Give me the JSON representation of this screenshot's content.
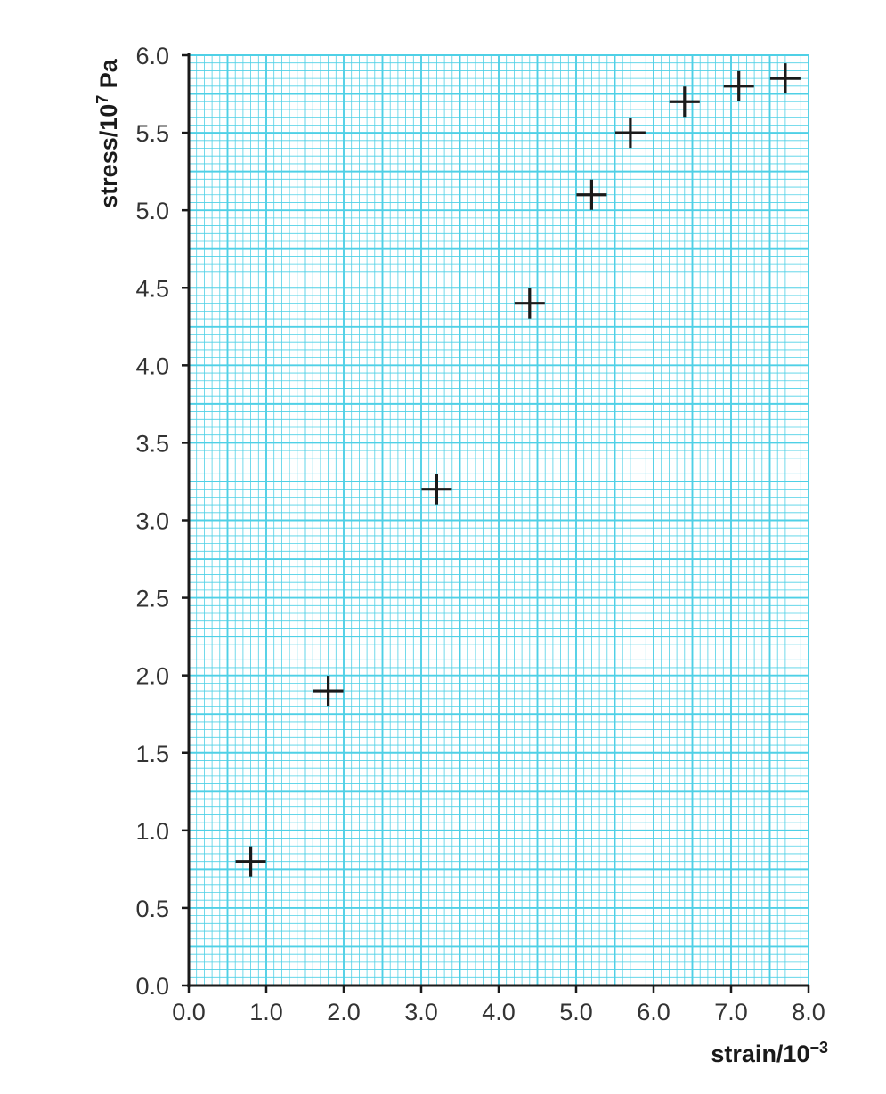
{
  "chart_data": {
    "type": "scatter",
    "title": "",
    "xlabel": {
      "main": "strain/10",
      "sup": "−3"
    },
    "ylabel": {
      "main": "stress/10",
      "sup": "7",
      "unit": " Pa"
    },
    "xlim": [
      0,
      8
    ],
    "ylim": [
      0,
      6
    ],
    "x_ticks": [
      "0.0",
      "1.0",
      "2.0",
      "3.0",
      "4.0",
      "5.0",
      "6.0",
      "7.0",
      "8.0"
    ],
    "y_ticks": [
      "0.0",
      "0.5",
      "1.0",
      "1.5",
      "2.0",
      "2.5",
      "3.0",
      "3.5",
      "4.0",
      "4.5",
      "5.0",
      "5.5",
      "6.0"
    ],
    "grid": true,
    "marker": "plus",
    "series": [
      {
        "points": [
          {
            "x": 0.8,
            "y": 0.8
          },
          {
            "x": 1.8,
            "y": 1.9
          },
          {
            "x": 3.2,
            "y": 3.2
          },
          {
            "x": 4.4,
            "y": 4.4
          },
          {
            "x": 5.2,
            "y": 5.1
          },
          {
            "x": 5.7,
            "y": 5.5
          },
          {
            "x": 6.4,
            "y": 5.7
          },
          {
            "x": 7.1,
            "y": 5.8
          },
          {
            "x": 7.7,
            "y": 5.85
          }
        ]
      }
    ],
    "colors": {
      "grid": "#4fd0e6",
      "axis": "#1a1a1a",
      "marker": "#1a1a1a"
    }
  }
}
